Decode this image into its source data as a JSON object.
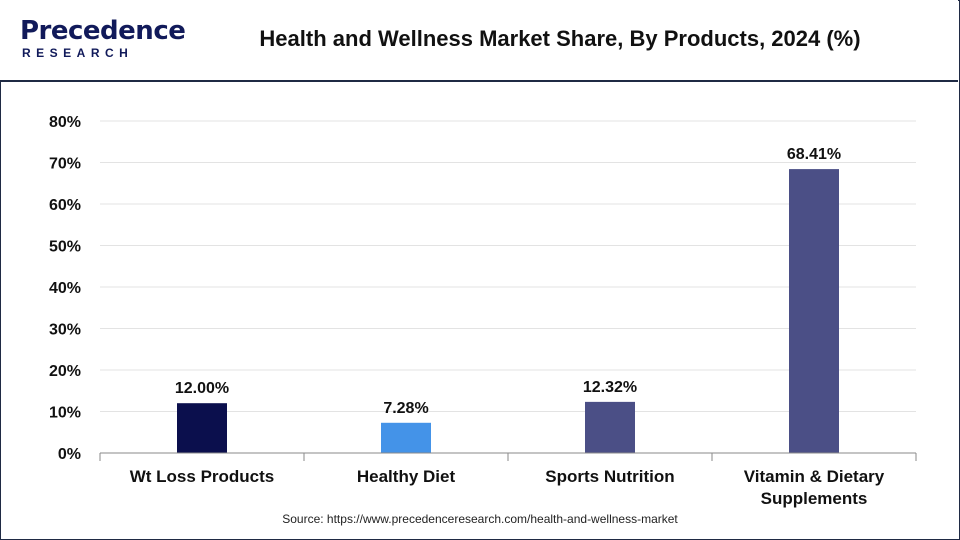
{
  "brand": {
    "logo_word": "Precedence",
    "logo_sub": "RESEARCH"
  },
  "header": {
    "title": "Health and Wellness Market Share, By Products, 2024 (%)"
  },
  "footer": {
    "source": "Source: https://www.precedenceresearch.com/health-and-wellness-market"
  },
  "colors": {
    "brand": "#111a5a",
    "bar_colors": [
      "#0b0f4d",
      "#4493e8",
      "#4b4f86",
      "#4b4f86"
    ]
  },
  "chart_data": {
    "type": "bar",
    "title": "Health and Wellness Market Share, By Products, 2024 (%)",
    "categories": [
      "Wt Loss Products",
      "Healthy Diet",
      "Sports Nutrition",
      "Vitamin & Dietary Supplements"
    ],
    "category_lines": [
      [
        "Wt Loss Products"
      ],
      [
        "Healthy Diet"
      ],
      [
        "Sports Nutrition"
      ],
      [
        "Vitamin & Dietary",
        "Supplements"
      ]
    ],
    "values": [
      12.0,
      7.28,
      12.32,
      68.41
    ],
    "data_labels": [
      "12.00%",
      "7.28%",
      "12.32%",
      "68.41%"
    ],
    "yticks": [
      "0%",
      "10%",
      "20%",
      "30%",
      "40%",
      "50%",
      "60%",
      "70%",
      "80%"
    ],
    "ylim": [
      0,
      80
    ],
    "xlabel": "",
    "ylabel": "",
    "grid": true
  }
}
